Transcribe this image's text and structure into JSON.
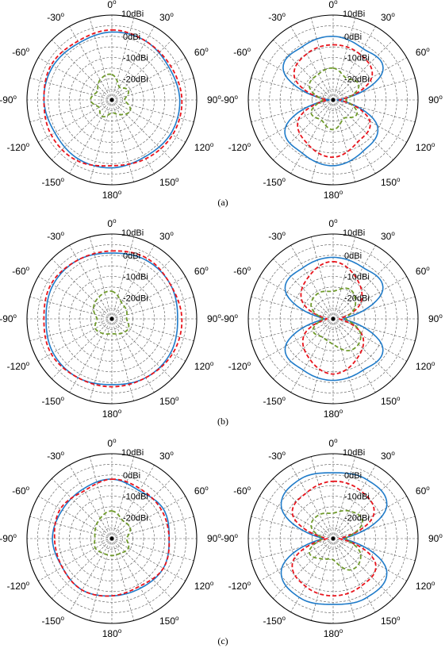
{
  "figure": {
    "panel_labels": [
      "(a)",
      "(b)",
      "(c)"
    ]
  },
  "chart_data": [
    {
      "type": "polar",
      "panel": "(a)",
      "plot": "left",
      "angles_deg": [
        0,
        30,
        60,
        90,
        120,
        150,
        180,
        210,
        240,
        270,
        300,
        330
      ],
      "angle_tick_labels": [
        "0",
        "30",
        "60",
        "90",
        "120",
        "150",
        "180",
        "-150",
        "-120",
        "-90",
        "-60",
        "-30"
      ],
      "radial_tick_labels": [
        "10dBi",
        "0dBi",
        "-10dBi",
        "-20dBi"
      ],
      "rlim_dbi": [
        -30,
        10
      ],
      "series": [
        {
          "color": "#1f7bc9",
          "style": "solid",
          "values": [
            2,
            2,
            1,
            2,
            2,
            1,
            2,
            2,
            1,
            2,
            2,
            1
          ]
        },
        {
          "color": "#e8141c",
          "style": "dashed",
          "values": [
            3,
            2,
            2,
            3,
            3,
            2,
            1,
            3,
            3,
            2,
            3,
            2
          ]
        },
        {
          "color": "#6f9a2b",
          "style": "dashed",
          "values": [
            -18,
            -23,
            -21,
            -24,
            -20,
            -22,
            -24,
            -21,
            -23,
            -20,
            -22,
            -19
          ]
        }
      ]
    },
    {
      "type": "polar",
      "panel": "(a)",
      "plot": "right",
      "angles_deg": [
        0,
        30,
        60,
        90,
        120,
        150,
        180,
        210,
        240,
        270,
        300,
        330
      ],
      "angle_tick_labels": [
        "0",
        "30",
        "60",
        "90",
        "120",
        "150",
        "180",
        "-150",
        "-120",
        "-90",
        "-60",
        "-30"
      ],
      "radial_tick_labels": [
        "10dBi",
        "0dBi",
        "-10dBi",
        "-20dBi"
      ],
      "rlim_dbi": [
        -30,
        10
      ],
      "series": [
        {
          "color": "#1f7bc9",
          "style": "solid",
          "values": [
            0,
            -2,
            -3,
            -28,
            -6,
            -2,
            1,
            -1,
            -4,
            -28,
            -3,
            -1
          ]
        },
        {
          "color": "#e8141c",
          "style": "dashed",
          "values": [
            -4,
            -5,
            -9,
            -27,
            -10,
            -7,
            -3,
            -6,
            -11,
            -27,
            -9,
            -5
          ]
        },
        {
          "color": "#6f9a2b",
          "style": "dashed",
          "values": [
            -15,
            -18,
            -16,
            -24,
            -17,
            -20,
            -16,
            -19,
            -18,
            -25,
            -17,
            -16
          ]
        }
      ]
    },
    {
      "type": "polar",
      "panel": "(b)",
      "plot": "left",
      "angles_deg": [
        0,
        30,
        60,
        90,
        120,
        150,
        180,
        210,
        240,
        270,
        300,
        330
      ],
      "angle_tick_labels": [
        "0",
        "30",
        "60",
        "90",
        "120",
        "150",
        "180",
        "-150",
        "-120",
        "-90",
        "-60",
        "-30"
      ],
      "radial_tick_labels": [
        "10dBi",
        "0dBi",
        "-10dBi",
        "-20dBi"
      ],
      "rlim_dbi": [
        -30,
        10
      ],
      "series": [
        {
          "color": "#1f7bc9",
          "style": "solid",
          "values": [
            1,
            2,
            2,
            1,
            2,
            2,
            1,
            2,
            2,
            1,
            2,
            2
          ]
        },
        {
          "color": "#e8141c",
          "style": "dashed",
          "values": [
            2,
            3,
            2,
            3,
            3,
            2,
            2,
            2,
            3,
            2,
            3,
            2
          ]
        },
        {
          "color": "#6f9a2b",
          "style": "dashed",
          "values": [
            -17,
            -21,
            -22,
            -23,
            -21,
            -22,
            -23,
            -22,
            -21,
            -23,
            -20,
            -18
          ]
        }
      ]
    },
    {
      "type": "polar",
      "panel": "(b)",
      "plot": "right",
      "angles_deg": [
        0,
        30,
        60,
        90,
        120,
        150,
        180,
        210,
        240,
        270,
        300,
        330
      ],
      "angle_tick_labels": [
        "0",
        "30",
        "60",
        "90",
        "120",
        "150",
        "180",
        "-150",
        "-120",
        "-90",
        "-60",
        "-30"
      ],
      "radial_tick_labels": [
        "10dBi",
        "0dBi",
        "-10dBi",
        "-20dBi"
      ],
      "rlim_dbi": [
        -30,
        10
      ],
      "series": [
        {
          "color": "#1f7bc9",
          "style": "solid",
          "values": [
            -1,
            -2,
            -3,
            -25,
            -3,
            -2,
            -1,
            -2,
            -4,
            -26,
            -4,
            -2
          ]
        },
        {
          "color": "#e8141c",
          "style": "dashed",
          "values": [
            -3,
            -8,
            -15,
            -27,
            -14,
            -8,
            -4,
            -8,
            -14,
            -27,
            -13,
            -7
          ]
        },
        {
          "color": "#6f9a2b",
          "style": "dashed",
          "values": [
            -17,
            -14,
            -18,
            -24,
            -15,
            -13,
            -18,
            -20,
            -19,
            -25,
            -18,
            -16
          ]
        }
      ]
    },
    {
      "type": "polar",
      "panel": "(c)",
      "plot": "left",
      "angles_deg": [
        0,
        30,
        60,
        90,
        120,
        150,
        180,
        210,
        240,
        270,
        300,
        330
      ],
      "angle_tick_labels": [
        "0",
        "30",
        "60",
        "90",
        "120",
        "150",
        "180",
        "-150",
        "-120",
        "-90",
        "-60",
        "-30"
      ],
      "radial_tick_labels": [
        "10dBi",
        "0dBi",
        "-10dBi",
        "-20dBi"
      ],
      "rlim_dbi": [
        -30,
        10
      ],
      "series": [
        {
          "color": "#1f7bc9",
          "style": "solid",
          "values": [
            -2,
            -4,
            -2,
            -3,
            -2,
            -3,
            -3,
            -2,
            -3,
            -2,
            -3,
            -3
          ]
        },
        {
          "color": "#e8141c",
          "style": "dashed",
          "values": [
            -2,
            -3,
            -3,
            -3,
            -2,
            -4,
            -3,
            -2,
            -3,
            -3,
            -2,
            -4
          ]
        },
        {
          "color": "#6f9a2b",
          "style": "dashed",
          "values": [
            -17,
            -20,
            -20,
            -23,
            -21,
            -22,
            -22,
            -22,
            -21,
            -22,
            -21,
            -19
          ]
        }
      ]
    },
    {
      "type": "polar",
      "panel": "(c)",
      "plot": "right",
      "angles_deg": [
        0,
        30,
        60,
        90,
        120,
        150,
        180,
        210,
        240,
        270,
        300,
        330
      ],
      "angle_tick_labels": [
        "0",
        "30",
        "60",
        "90",
        "120",
        "150",
        "180",
        "-150",
        "-120",
        "-90",
        "-60",
        "-30"
      ],
      "radial_tick_labels": [
        "10dBi",
        "0dBi",
        "-10dBi",
        "-20dBi"
      ],
      "rlim_dbi": [
        -30,
        10
      ],
      "series": [
        {
          "color": "#1f7bc9",
          "style": "solid",
          "values": [
            1,
            2,
            -1,
            -25,
            -1,
            2,
            1,
            2,
            -2,
            -25,
            -2,
            2
          ]
        },
        {
          "color": "#e8141c",
          "style": "dashed",
          "values": [
            -3,
            -4,
            -8,
            -27,
            -7,
            -4,
            -3,
            -4,
            -8,
            -27,
            -8,
            -5
          ]
        },
        {
          "color": "#6f9a2b",
          "style": "dashed",
          "values": [
            -18,
            -15,
            -14,
            -24,
            -15,
            -13,
            -20,
            -19,
            -17,
            -25,
            -18,
            -17
          ]
        }
      ]
    }
  ]
}
